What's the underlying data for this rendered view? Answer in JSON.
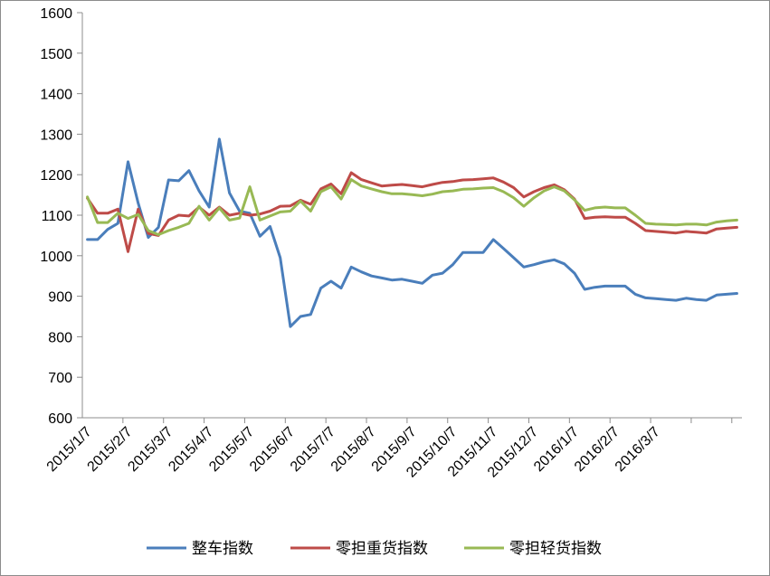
{
  "chart_data": {
    "type": "line",
    "title": "",
    "xlabel": "",
    "ylabel": "",
    "ylim": [
      600,
      1600
    ],
    "yticks": [
      600,
      700,
      800,
      900,
      1000,
      1100,
      1200,
      1300,
      1400,
      1500,
      1600
    ],
    "xtick_labels": [
      "2015/1/7",
      "2015/2/7",
      "2015/3/7",
      "2015/4/7",
      "2015/5/7",
      "2015/6/7",
      "2015/7/7",
      "2015/8/7",
      "2015/9/7",
      "2015/10/7",
      "2015/11/7",
      "2015/12/7",
      "2016/1/7",
      "2016/2/7",
      "2016/3/7"
    ],
    "xtick_index": [
      0,
      4,
      8,
      12,
      16,
      20,
      24,
      28,
      32,
      36,
      40,
      44,
      48,
      52,
      56
    ],
    "gridlines": false,
    "legend_position": "bottom",
    "series": [
      {
        "name": "整车指数",
        "color": "#4a7ebb",
        "values": [
          1040,
          1040,
          1065,
          1080,
          1232,
          1130,
          1045,
          1070,
          1187,
          1185,
          1210,
          1160,
          1120,
          1288,
          1155,
          1110,
          1105,
          1048,
          1072,
          995,
          825,
          850,
          855,
          920,
          937,
          920,
          972,
          960,
          950,
          945,
          940,
          942,
          937,
          932,
          952,
          957,
          978,
          1008,
          1008,
          1008,
          1040,
          1018,
          995,
          972,
          978,
          985,
          990,
          980,
          957,
          917,
          922,
          925,
          925,
          925,
          905,
          896,
          894,
          892,
          890,
          895,
          892,
          890,
          903,
          905,
          907
        ]
      },
      {
        "name": "零担重货指数",
        "color": "#be4b48",
        "values": [
          1142,
          1105,
          1105,
          1115,
          1010,
          1115,
          1055,
          1050,
          1088,
          1100,
          1098,
          1120,
          1100,
          1120,
          1100,
          1105,
          1100,
          1103,
          1110,
          1122,
          1123,
          1137,
          1127,
          1165,
          1177,
          1153,
          1205,
          1188,
          1180,
          1172,
          1174,
          1176,
          1173,
          1170,
          1176,
          1181,
          1183,
          1187,
          1188,
          1190,
          1192,
          1182,
          1168,
          1145,
          1158,
          1168,
          1175,
          1163,
          1140,
          1092,
          1095,
          1096,
          1095,
          1095,
          1080,
          1062,
          1060,
          1058,
          1056,
          1060,
          1058,
          1056,
          1066,
          1068,
          1070
        ]
      },
      {
        "name": "零担轻货指数",
        "color": "#98b954",
        "values": [
          1145,
          1082,
          1082,
          1105,
          1092,
          1102,
          1062,
          1052,
          1062,
          1070,
          1080,
          1122,
          1088,
          1118,
          1088,
          1093,
          1170,
          1088,
          1098,
          1108,
          1110,
          1135,
          1110,
          1158,
          1170,
          1140,
          1188,
          1172,
          1165,
          1158,
          1153,
          1153,
          1151,
          1148,
          1152,
          1158,
          1160,
          1164,
          1165,
          1167,
          1168,
          1158,
          1143,
          1122,
          1143,
          1160,
          1170,
          1160,
          1138,
          1112,
          1118,
          1120,
          1118,
          1118,
          1100,
          1080,
          1078,
          1077,
          1076,
          1078,
          1078,
          1076,
          1083,
          1086,
          1088
        ]
      }
    ]
  }
}
